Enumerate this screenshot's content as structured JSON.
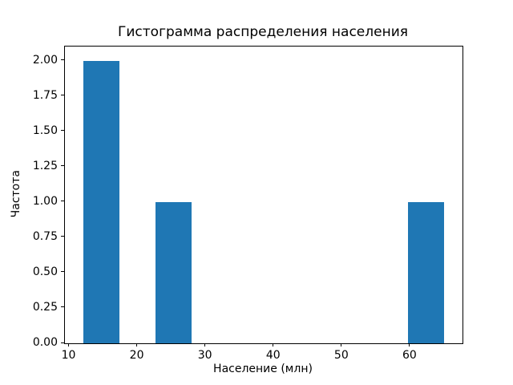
{
  "chart_data": {
    "type": "bar",
    "subtype": "histogram",
    "title": "Гистограмма распределения населения",
    "xlabel": "Население (млн)",
    "ylabel": "Частота",
    "bar_color": "#1f77b4",
    "grid": false,
    "legend": false,
    "xlim": [
      9.35,
      67.65
    ],
    "ylim": [
      0,
      2.1
    ],
    "xticks": [
      10,
      20,
      30,
      40,
      50,
      60
    ],
    "yticks": [
      {
        "value": 0.0,
        "label": "0.00"
      },
      {
        "value": 0.25,
        "label": "0.25"
      },
      {
        "value": 0.5,
        "label": "0.50"
      },
      {
        "value": 0.75,
        "label": "0.75"
      },
      {
        "value": 1.0,
        "label": "1.00"
      },
      {
        "value": 1.25,
        "label": "1.25"
      },
      {
        "value": 1.5,
        "label": "1.50"
      },
      {
        "value": 1.75,
        "label": "1.75"
      },
      {
        "value": 2.0,
        "label": "2.00"
      }
    ],
    "bars": [
      {
        "x_start": 12.0,
        "x_end": 17.3,
        "height": 2
      },
      {
        "x_start": 22.6,
        "x_end": 27.9,
        "height": 1
      },
      {
        "x_start": 59.7,
        "x_end": 65.0,
        "height": 1
      }
    ]
  }
}
